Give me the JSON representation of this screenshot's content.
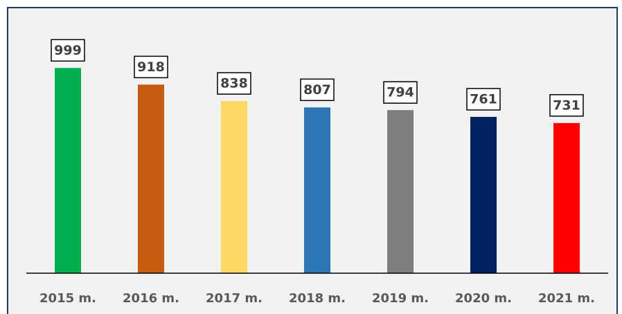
{
  "chart_data": {
    "type": "bar",
    "categories": [
      "2015 m.",
      "2016 m.",
      "2017 m.",
      "2018 m.",
      "2019 m.",
      "2020 m.",
      "2021 m."
    ],
    "values": [
      999,
      918,
      838,
      807,
      794,
      761,
      731
    ],
    "colors": [
      "#00b050",
      "#c55a11",
      "#ffd966",
      "#2e75b6",
      "#7f7f7f",
      "#002060",
      "#ff0000"
    ],
    "ylim": [
      0,
      1000
    ]
  }
}
